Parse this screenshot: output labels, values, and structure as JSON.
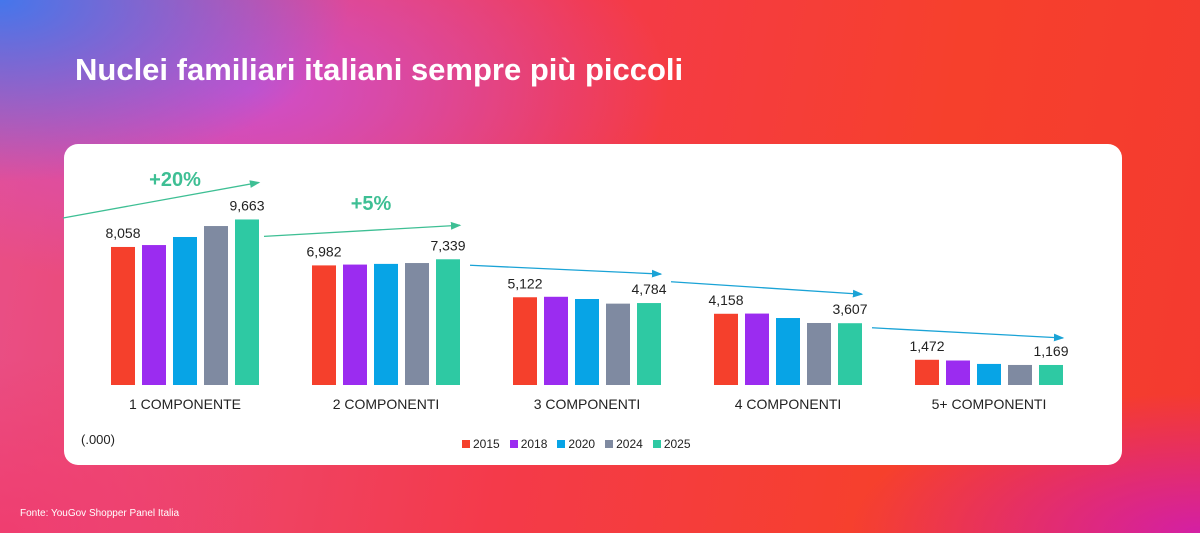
{
  "title": "Nuclei familiari italiani sempre più piccoli",
  "source": "Fonte: YouGov Shopper Panel Italia",
  "chart_data": {
    "type": "bar",
    "unit_note": "(.000)",
    "categories": [
      "1 COMPONENTE",
      "2 COMPONENTI",
      "3 COMPONENTI",
      "4 COMPONENTI",
      "5+ COMPONENTI"
    ],
    "series": [
      {
        "name": "2015",
        "color": "#f5402c",
        "values": [
          8058,
          6982,
          5122,
          4158,
          1472
        ]
      },
      {
        "name": "2018",
        "color": "#9b2cf0",
        "values": [
          8170,
          7030,
          5150,
          4170,
          1430
        ]
      },
      {
        "name": "2020",
        "color": "#07a4e6",
        "values": [
          8640,
          7070,
          5020,
          3910,
          1230
        ]
      },
      {
        "name": "2024",
        "color": "#7f8aa1",
        "values": [
          9280,
          7120,
          4750,
          3620,
          1170
        ]
      },
      {
        "name": "2025",
        "color": "#2ec9a3",
        "values": [
          9663,
          7339,
          4784,
          3607,
          1169
        ]
      }
    ],
    "data_labels": [
      [
        "8,058",
        "9,663"
      ],
      [
        "6,982",
        "7,339"
      ],
      [
        "5,122",
        "4,784"
      ],
      [
        "4,158",
        "3,607"
      ],
      [
        "1,472",
        "1,169"
      ]
    ],
    "annotations": [
      {
        "text": "+20%",
        "color": "#3ebf94",
        "trend": "up"
      },
      {
        "text": "+5%",
        "color": "#3ebf94",
        "trend": "up"
      },
      {
        "text": "",
        "color": "#1aa3d6",
        "trend": "down"
      },
      {
        "text": "",
        "color": "#1aa3d6",
        "trend": "down"
      },
      {
        "text": "",
        "color": "#1aa3d6",
        "trend": "down"
      }
    ],
    "ylim": [
      0,
      10000
    ],
    "grid": false,
    "legend_position": "bottom"
  }
}
